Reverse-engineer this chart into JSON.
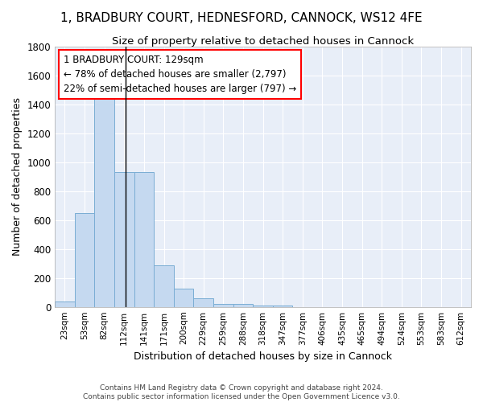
{
  "title": "1, BRADBURY COURT, HEDNESFORD, CANNOCK, WS12 4FE",
  "subtitle": "Size of property relative to detached houses in Cannock",
  "xlabel": "Distribution of detached houses by size in Cannock",
  "ylabel": "Number of detached properties",
  "bar_color": "#c5d9f0",
  "bar_edge_color": "#7aadd4",
  "background_color": "#e8eef8",
  "grid_color": "#ffffff",
  "categories": [
    "23sqm",
    "53sqm",
    "82sqm",
    "112sqm",
    "141sqm",
    "171sqm",
    "200sqm",
    "229sqm",
    "259sqm",
    "288sqm",
    "318sqm",
    "347sqm",
    "377sqm",
    "406sqm",
    "435sqm",
    "465sqm",
    "494sqm",
    "524sqm",
    "553sqm",
    "583sqm",
    "612sqm"
  ],
  "values": [
    35,
    650,
    1470,
    935,
    935,
    290,
    125,
    60,
    20,
    20,
    10,
    10,
    0,
    0,
    0,
    0,
    0,
    0,
    0,
    0,
    0
  ],
  "annotation_line1": "1 BRADBURY COURT: 129sqm",
  "annotation_line2": "← 78% of detached houses are smaller (2,797)",
  "annotation_line3": "22% of semi-detached houses are larger (797) →",
  "footer_line1": "Contains HM Land Registry data © Crown copyright and database right 2024.",
  "footer_line2": "Contains public sector information licensed under the Open Government Licence v3.0.",
  "ylim": [
    0,
    1800
  ],
  "yticks": [
    0,
    200,
    400,
    600,
    800,
    1000,
    1200,
    1400,
    1600,
    1800
  ],
  "vline_x": 3.0,
  "title_fontsize": 11,
  "subtitle_fontsize": 9.5
}
